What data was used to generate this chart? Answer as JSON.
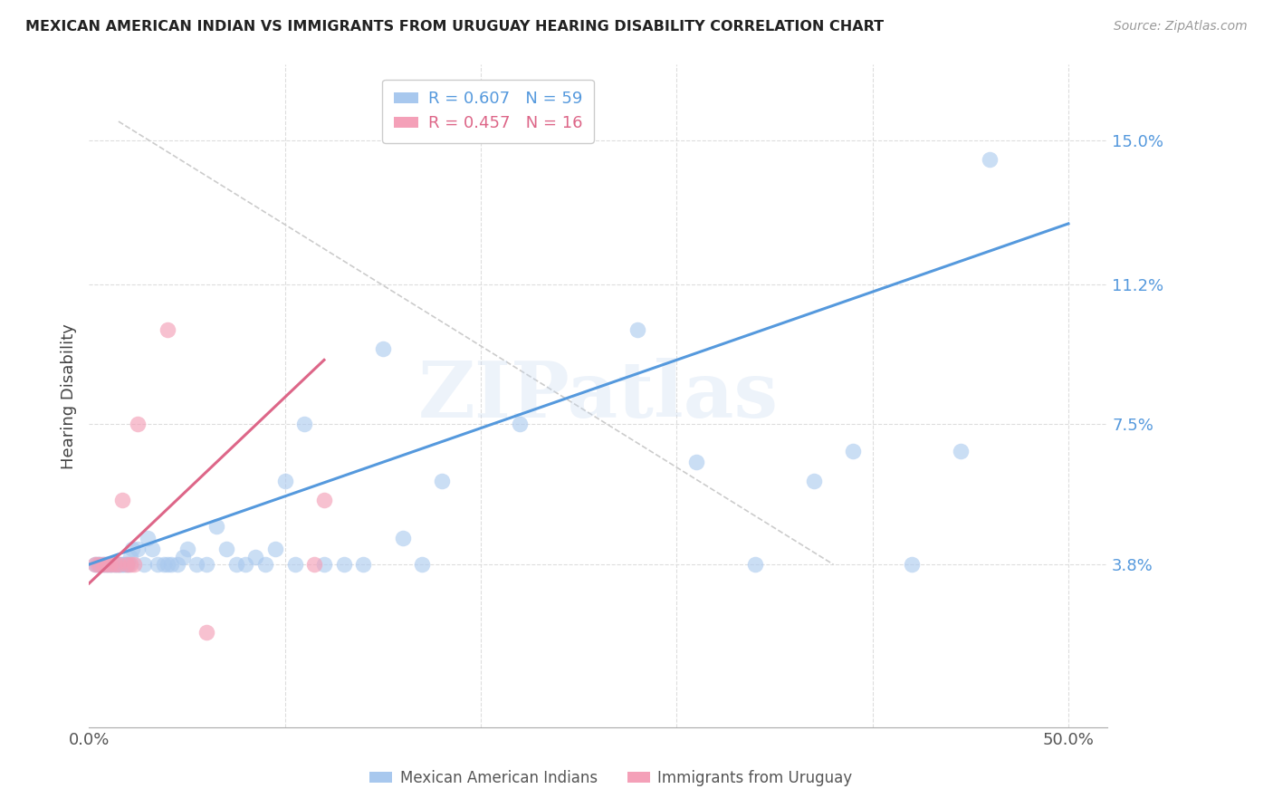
{
  "title": "MEXICAN AMERICAN INDIAN VS IMMIGRANTS FROM URUGUAY HEARING DISABILITY CORRELATION CHART",
  "source": "Source: ZipAtlas.com",
  "ylabel": "Hearing Disability",
  "xlim": [
    0.0,
    0.52
  ],
  "ylim": [
    -0.005,
    0.17
  ],
  "yticks": [
    0.038,
    0.075,
    0.112,
    0.15
  ],
  "ytick_labels": [
    "3.8%",
    "7.5%",
    "11.2%",
    "15.0%"
  ],
  "xticks": [
    0.0,
    0.1,
    0.2,
    0.3,
    0.4,
    0.5
  ],
  "xtick_labels": [
    "0.0%",
    "",
    "",
    "",
    "",
    "50.0%"
  ],
  "legend_r1": "R = 0.607",
  "legend_n1": "N = 59",
  "legend_r2": "R = 0.457",
  "legend_n2": "N = 16",
  "blue_color": "#A8C8EE",
  "pink_color": "#F4A0B8",
  "blue_line_color": "#5599DD",
  "pink_line_color": "#DD6688",
  "diag_line_color": "#CCCCCC",
  "watermark": "ZIPatlas",
  "blue_scatter_x": [
    0.003,
    0.004,
    0.005,
    0.006,
    0.007,
    0.008,
    0.009,
    0.01,
    0.011,
    0.012,
    0.013,
    0.014,
    0.015,
    0.016,
    0.017,
    0.018,
    0.019,
    0.02,
    0.021,
    0.022,
    0.025,
    0.028,
    0.03,
    0.032,
    0.035,
    0.038,
    0.04,
    0.042,
    0.045,
    0.048,
    0.05,
    0.055,
    0.06,
    0.065,
    0.07,
    0.075,
    0.08,
    0.085,
    0.09,
    0.095,
    0.1,
    0.105,
    0.11,
    0.12,
    0.13,
    0.14,
    0.15,
    0.16,
    0.17,
    0.18,
    0.22,
    0.28,
    0.31,
    0.34,
    0.37,
    0.39,
    0.42,
    0.445,
    0.46
  ],
  "blue_scatter_y": [
    0.038,
    0.038,
    0.038,
    0.038,
    0.038,
    0.038,
    0.038,
    0.038,
    0.038,
    0.038,
    0.038,
    0.038,
    0.038,
    0.038,
    0.038,
    0.038,
    0.038,
    0.038,
    0.04,
    0.042,
    0.042,
    0.038,
    0.045,
    0.042,
    0.038,
    0.038,
    0.038,
    0.038,
    0.038,
    0.04,
    0.042,
    0.038,
    0.038,
    0.048,
    0.042,
    0.038,
    0.038,
    0.04,
    0.038,
    0.042,
    0.06,
    0.038,
    0.075,
    0.038,
    0.038,
    0.038,
    0.095,
    0.045,
    0.038,
    0.06,
    0.075,
    0.1,
    0.065,
    0.038,
    0.06,
    0.068,
    0.038,
    0.068,
    0.145
  ],
  "pink_scatter_x": [
    0.003,
    0.005,
    0.007,
    0.009,
    0.011,
    0.013,
    0.015,
    0.017,
    0.019,
    0.021,
    0.023,
    0.025,
    0.04,
    0.06,
    0.115,
    0.12
  ],
  "pink_scatter_y": [
    0.038,
    0.038,
    0.038,
    0.038,
    0.038,
    0.038,
    0.038,
    0.055,
    0.038,
    0.038,
    0.038,
    0.075,
    0.1,
    0.02,
    0.038,
    0.055
  ],
  "blue_line_x": [
    0.0,
    0.5
  ],
  "blue_line_y": [
    0.038,
    0.128
  ],
  "pink_line_x": [
    0.0,
    0.12
  ],
  "pink_line_y": [
    0.033,
    0.092
  ],
  "diag_line_x": [
    0.015,
    0.38
  ],
  "diag_line_y": [
    0.155,
    0.038
  ]
}
